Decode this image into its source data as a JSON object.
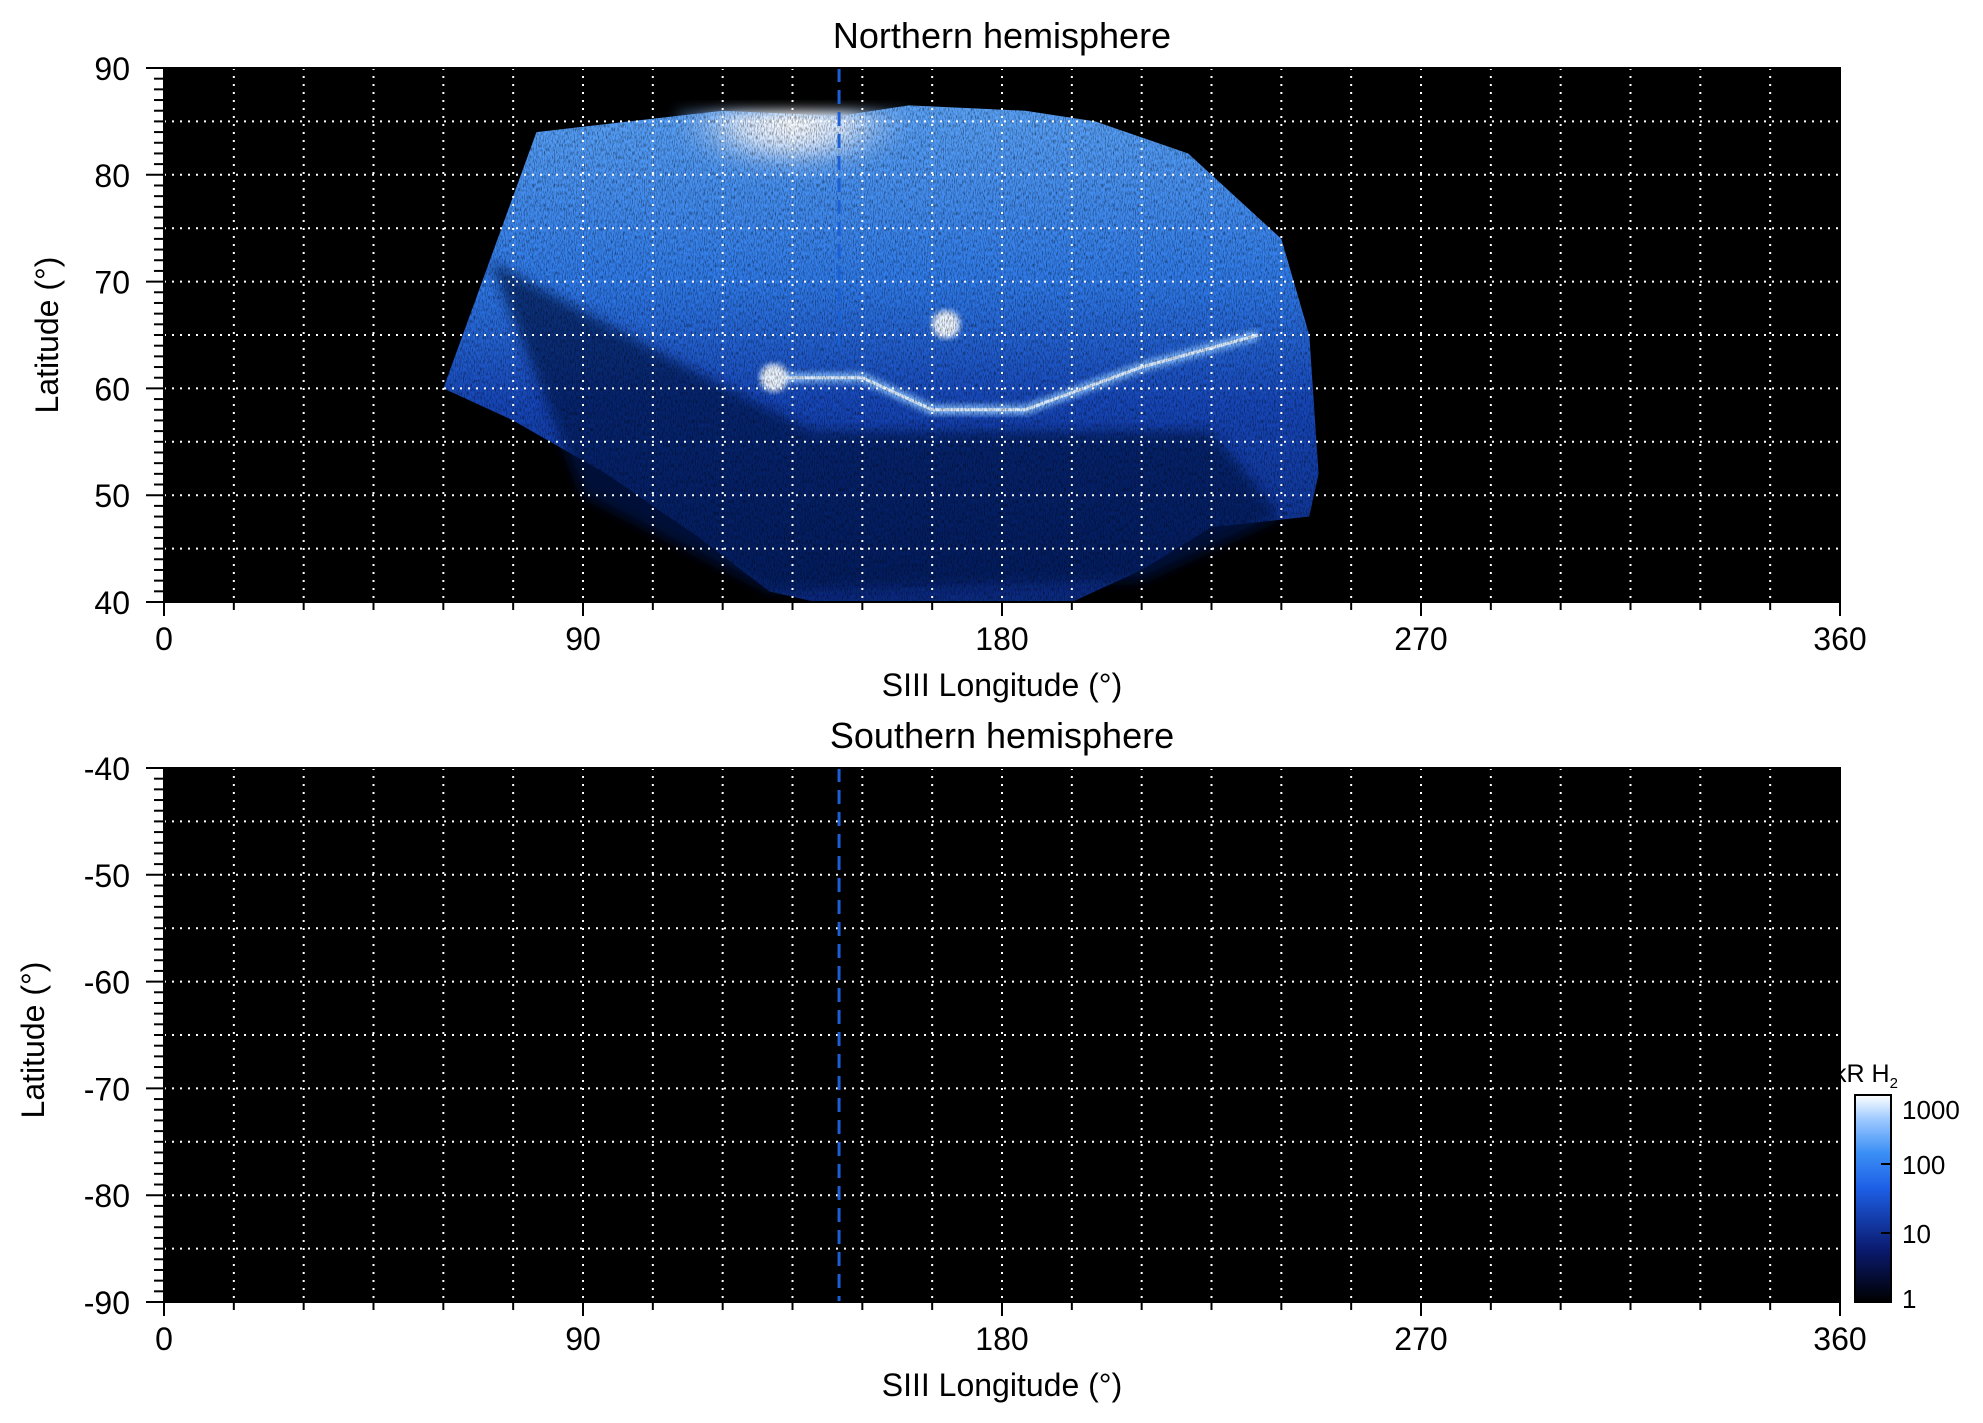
{
  "chart_data": [
    {
      "type": "heatmap",
      "title": "Northern hemisphere",
      "xlabel": "SIII Longitude (°)",
      "ylabel": "Latitude (°)",
      "xlim": [
        0,
        360
      ],
      "ylim": [
        40,
        90
      ],
      "x_ticks": [
        0,
        90,
        180,
        270,
        360
      ],
      "x_tick_labels": [
        "0",
        "90",
        "180",
        "270",
        "360"
      ],
      "y_ticks": [
        40,
        50,
        60,
        70,
        80,
        90
      ],
      "y_tick_labels": [
        "40",
        "50",
        "60",
        "70",
        "80",
        "90"
      ],
      "grid": true,
      "grid_style": "dotted white, every 15° longitude and 5° latitude",
      "background": "#000000",
      "marker_line": {
        "x": 145,
        "style": "dashed",
        "color": "#1a5fd6",
        "y_range": [
          64,
          90
        ]
      },
      "coverage_boundary": {
        "top": [
          [
            60,
            60
          ],
          [
            80,
            84
          ],
          [
            100,
            85
          ],
          [
            120,
            86
          ],
          [
            145,
            85.5
          ],
          [
            160,
            86.5
          ],
          [
            185,
            86
          ],
          [
            200,
            85
          ],
          [
            220,
            82
          ],
          [
            240,
            74
          ],
          [
            246,
            65
          ],
          [
            248,
            52
          ],
          [
            246,
            48
          ]
        ],
        "bottom": [
          [
            60,
            60
          ],
          [
            75,
            57
          ],
          [
            95,
            52
          ],
          [
            115,
            46
          ],
          [
            130,
            41
          ],
          [
            140,
            40
          ],
          [
            195,
            40
          ],
          [
            210,
            43
          ],
          [
            225,
            47
          ],
          [
            246,
            48
          ]
        ]
      },
      "emission_features": [
        {
          "feature": "bright polar cap region",
          "lon_range": [
            110,
            160
          ],
          "lat_range": [
            76,
            86
          ],
          "level": 1000
        },
        {
          "feature": "main emission arc",
          "points": [
            [
              130,
              61
            ],
            [
              150,
              61
            ],
            [
              165,
              58
            ],
            [
              185,
              58
            ],
            [
              210,
              62
            ],
            [
              235,
              65
            ]
          ],
          "level": 300
        },
        {
          "feature": "bright spot",
          "lon": 168,
          "lat": 66,
          "level": 500
        },
        {
          "feature": "bright spot",
          "lon": 131,
          "lat": 61,
          "level": 400
        }
      ]
    },
    {
      "type": "heatmap",
      "title": "Southern hemisphere",
      "xlabel": "SIII Longitude (°)",
      "ylabel": "Latitude (°)",
      "xlim": [
        0,
        360
      ],
      "ylim": [
        -90,
        -40
      ],
      "x_ticks": [
        0,
        90,
        180,
        270,
        360
      ],
      "x_tick_labels": [
        "0",
        "90",
        "180",
        "270",
        "360"
      ],
      "y_ticks": [
        -40,
        -50,
        -60,
        -70,
        -80,
        -90
      ],
      "y_tick_labels": [
        "-40",
        "-50",
        "-60",
        "-70",
        "-80",
        "-90"
      ],
      "grid": true,
      "grid_style": "dotted white, every 15° longitude and 5° latitude",
      "background": "#000000",
      "marker_line": {
        "x": 145,
        "style": "dashed",
        "color": "#1a5fd6",
        "y_range": [
          -90,
          -40
        ]
      },
      "emission_features": []
    }
  ],
  "colorbar": {
    "label": "kR H",
    "label_subscript": "2",
    "scale": "log",
    "range": [
      1,
      1000
    ],
    "ticks": [
      "1000",
      "100",
      "10",
      "1"
    ],
    "colors": [
      "#000000",
      "#0a1a6e",
      "#1d5fe6",
      "#3b8ff5",
      "#9cc8ff",
      "#ffffff"
    ],
    "placement": "bottom-right"
  }
}
